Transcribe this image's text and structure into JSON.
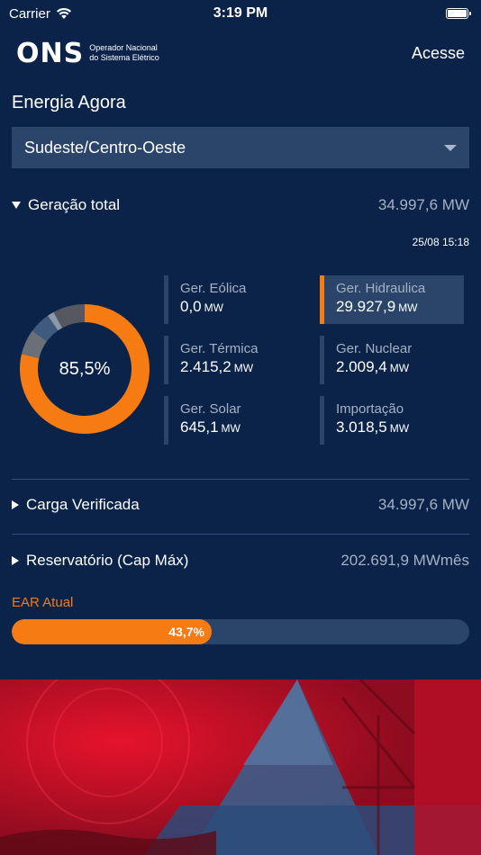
{
  "status_bar": {
    "carrier": "Carrier",
    "time": "3:19 PM"
  },
  "header": {
    "logo_mark": "ONS",
    "logo_line1": "Operador Nacional",
    "logo_line2": "do Sistema Elétrico",
    "login_label": "Acesse"
  },
  "section_title": "Energia Agora",
  "region": {
    "selected": "Sudeste/Centro-Oeste"
  },
  "generation": {
    "label": "Geração total",
    "total": "34.997,6 MW",
    "timestamp": "25/08 15:18",
    "donut_center": "85,5%",
    "unit": "MW",
    "tiles": [
      {
        "label": "Ger. Eólica",
        "value": "0,0",
        "active": false
      },
      {
        "label": "Ger. Hidraulica",
        "value": "29.927,9",
        "active": true
      },
      {
        "label": "Ger. Térmica",
        "value": "2.415,2",
        "active": false
      },
      {
        "label": "Ger. Nuclear",
        "value": "2.009,4",
        "active": false
      },
      {
        "label": "Ger. Solar",
        "value": "645,1",
        "active": false
      },
      {
        "label": "Importação",
        "value": "3.018,5",
        "active": false
      }
    ]
  },
  "load": {
    "label": "Carga Verificada",
    "value": "34.997,6 MW"
  },
  "reservoir": {
    "label": "Reservatório (Cap Máx)",
    "value": "202.691,9 MWmês"
  },
  "ear": {
    "label": "EAR Atual",
    "percent_text": "43,7%",
    "percent": 43.7
  },
  "colors": {
    "background": "#0b2349",
    "accent": "#f57b12",
    "panel": "#2a4569",
    "muted": "#a5b2c4"
  },
  "chart_data": {
    "type": "pie",
    "categories": [
      "Ger. Hidraulica",
      "Ger. Térmica",
      "Ger. Nuclear",
      "Ger. Solar",
      "Importação",
      "Ger. Eólica"
    ],
    "values": [
      29927.9,
      2415.2,
      2009.4,
      645.1,
      3018.5,
      0.0
    ],
    "colors": [
      "#f57b12",
      "#6b6f76",
      "#3e5a7c",
      "#8a98aa",
      "#55595f",
      "#2f4d72"
    ]
  }
}
